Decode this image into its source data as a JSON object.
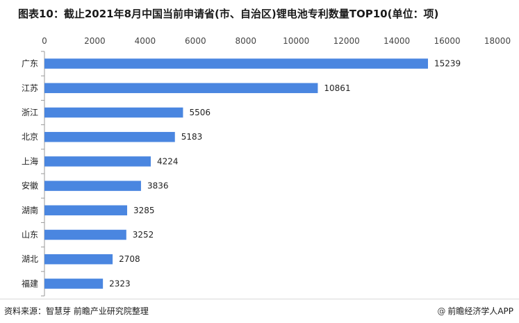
{
  "title": "图表10：截止2021年8月中国当前申请省(市、自治区)锂电池专利数量TOP10(单位：项)",
  "footer": {
    "source": "资料来源：智慧芽 前瞻产业研究院整理",
    "brand": "前瞻经济学人APP",
    "brand_icon": "at-icon"
  },
  "colors": {
    "bar": "#4a86e0",
    "axis": "#9a9a9a"
  },
  "chart_data": {
    "type": "bar",
    "orientation": "horizontal",
    "categories": [
      "广东",
      "江苏",
      "浙江",
      "北京",
      "上海",
      "安徽",
      "湖南",
      "山东",
      "湖北",
      "福建"
    ],
    "values": [
      15239,
      10861,
      5506,
      5183,
      4224,
      3836,
      3285,
      3252,
      2708,
      2323
    ],
    "xlim": [
      0,
      18000
    ],
    "xticks": [
      0,
      2000,
      4000,
      6000,
      8000,
      10000,
      12000,
      14000,
      16000,
      18000
    ],
    "axis_position": "top",
    "grid": false,
    "data_labels": true
  }
}
